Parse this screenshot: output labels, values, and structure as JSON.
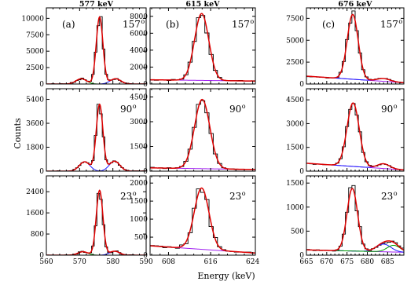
{
  "figure": {
    "ylabel": "Counts",
    "xlabel": "Energy (keV)",
    "colors": {
      "data": "#000000",
      "total_fit": "#dd0000",
      "component_green": "#00a000",
      "component_blue": "#1a1aff",
      "background": "#a020f0"
    }
  },
  "chart_data": [
    {
      "type": "line",
      "column": 0,
      "row": 0,
      "column_title": "577 keV",
      "tag": "(a)",
      "angle": "157",
      "degree": "o",
      "xlim": [
        560,
        590
      ],
      "ylim": [
        0,
        11600
      ],
      "xticks": [],
      "yticks": [
        0,
        2500,
        5000,
        7500,
        10000
      ],
      "peak": {
        "center": 576,
        "sigma": 1.0,
        "amp": 10200
      },
      "side": [
        {
          "center": 570.5,
          "sigma": 1.6,
          "amp": 800,
          "color": "component_green"
        },
        {
          "center": 580.8,
          "sigma": 1.6,
          "amp": 800,
          "color": "component_blue"
        }
      ],
      "background": {
        "y0": 0,
        "y1": 0
      },
      "noise": 0.1
    },
    {
      "type": "line",
      "column": 1,
      "row": 0,
      "column_title": "615 keV",
      "tag": "(b)",
      "angle": "157",
      "degree": "o",
      "xlim": [
        604.5,
        624.5
      ],
      "ylim": [
        0,
        9000
      ],
      "xticks": [],
      "yticks": [
        0,
        2000,
        4000,
        6000,
        8000
      ],
      "peak": {
        "center": 614.3,
        "sigma": 1.35,
        "amp": 7900
      },
      "side": [],
      "background": {
        "y0": 500,
        "y1": 350
      },
      "noise": 0.06
    },
    {
      "type": "line",
      "column": 2,
      "row": 0,
      "column_title": "676 keV",
      "tag": "(c)",
      "angle": "157",
      "degree": "o",
      "xlim": [
        665,
        689
      ],
      "ylim": [
        0,
        8700
      ],
      "xticks": [],
      "yticks": [
        0,
        2500,
        5000,
        7500
      ],
      "peak": {
        "center": 676.4,
        "sigma": 1.35,
        "amp": 7400
      },
      "side": [
        {
          "center": 684,
          "sigma": 1.6,
          "amp": 320,
          "color": "component_blue"
        }
      ],
      "background": {
        "y0": 900,
        "y1": 150
      },
      "noise": 0.06
    },
    {
      "type": "line",
      "column": 0,
      "row": 1,
      "tag": "",
      "angle": "90",
      "degree": "o",
      "xlim": [
        560,
        590
      ],
      "ylim": [
        0,
        6200
      ],
      "xticks": [],
      "yticks": [
        0,
        1800,
        3600,
        5400
      ],
      "peak": {
        "center": 576,
        "sigma": 1.0,
        "amp": 5000
      },
      "side": [
        {
          "center": 571.5,
          "sigma": 1.6,
          "amp": 700,
          "color": "component_blue"
        },
        {
          "center": 580.5,
          "sigma": 1.6,
          "amp": 750,
          "color": "component_blue"
        }
      ],
      "background": {
        "y0": 0,
        "y1": 0
      },
      "noise": 0.1
    },
    {
      "type": "line",
      "column": 1,
      "row": 1,
      "tag": "",
      "angle": "90",
      "degree": "o",
      "xlim": [
        604.5,
        624.5
      ],
      "ylim": [
        0,
        5000
      ],
      "xticks": [],
      "yticks": [
        0,
        1500,
        3000,
        4500
      ],
      "peak": {
        "center": 614.4,
        "sigma": 1.45,
        "amp": 4200
      },
      "side": [],
      "background": {
        "y0": 200,
        "y1": 100
      },
      "noise": 0.06
    },
    {
      "type": "line",
      "column": 2,
      "row": 1,
      "tag": "",
      "angle": "90",
      "degree": "o",
      "xlim": [
        665,
        689
      ],
      "ylim": [
        0,
        5200
      ],
      "xticks": [],
      "yticks": [
        0,
        1500,
        3000,
        4500
      ],
      "peak": {
        "center": 676.5,
        "sigma": 1.5,
        "amp": 4000
      },
      "side": [
        {
          "center": 684,
          "sigma": 1.5,
          "amp": 300,
          "color": "component_blue"
        }
      ],
      "background": {
        "y0": 500,
        "y1": 80
      },
      "noise": 0.06
    },
    {
      "type": "line",
      "column": 0,
      "row": 2,
      "tag": "",
      "angle": "23",
      "degree": "o",
      "xlim": [
        560,
        590
      ],
      "ylim": [
        0,
        3000
      ],
      "xticks": [
        560,
        570,
        580,
        590
      ],
      "yticks": [
        0,
        800,
        1600,
        2400
      ],
      "peak": {
        "center": 576,
        "sigma": 1.0,
        "amp": 2450
      },
      "side": [
        {
          "center": 571,
          "sigma": 1.5,
          "amp": 130,
          "color": "component_green"
        },
        {
          "center": 580.5,
          "sigma": 1.5,
          "amp": 150,
          "color": "component_blue"
        }
      ],
      "background": {
        "y0": 0,
        "y1": 0
      },
      "noise": 0.2
    },
    {
      "type": "line",
      "column": 1,
      "row": 2,
      "tag": "",
      "angle": "23",
      "degree": "o",
      "xlim": [
        604.5,
        624.5
      ],
      "ylim": [
        0,
        2200
      ],
      "xticks": [
        608,
        616,
        624
      ],
      "yticks": [
        0,
        500,
        1000,
        1500,
        2000
      ],
      "peak": {
        "center": 614.3,
        "sigma": 1.4,
        "amp": 1700
      },
      "side": [],
      "background": {
        "y0": 260,
        "y1": 60
      },
      "noise": 0.12
    },
    {
      "type": "line",
      "column": 2,
      "row": 2,
      "tag": "",
      "angle": "23",
      "degree": "o",
      "xlim": [
        665,
        689
      ],
      "ylim": [
        0,
        1650
      ],
      "xticks": [
        665,
        670,
        675,
        680,
        685
      ],
      "yticks": [
        0,
        500,
        1000,
        1500
      ],
      "peak": {
        "center": 676.3,
        "sigma": 1.3,
        "amp": 1300
      },
      "side": [
        {
          "center": 684,
          "sigma": 1.8,
          "amp": 160,
          "color": "component_blue"
        },
        {
          "center": 686.5,
          "sigma": 1.6,
          "amp": 140,
          "color": "component_green"
        }
      ],
      "background": {
        "y0": 110,
        "y1": 60
      },
      "noise": 0.12
    }
  ]
}
